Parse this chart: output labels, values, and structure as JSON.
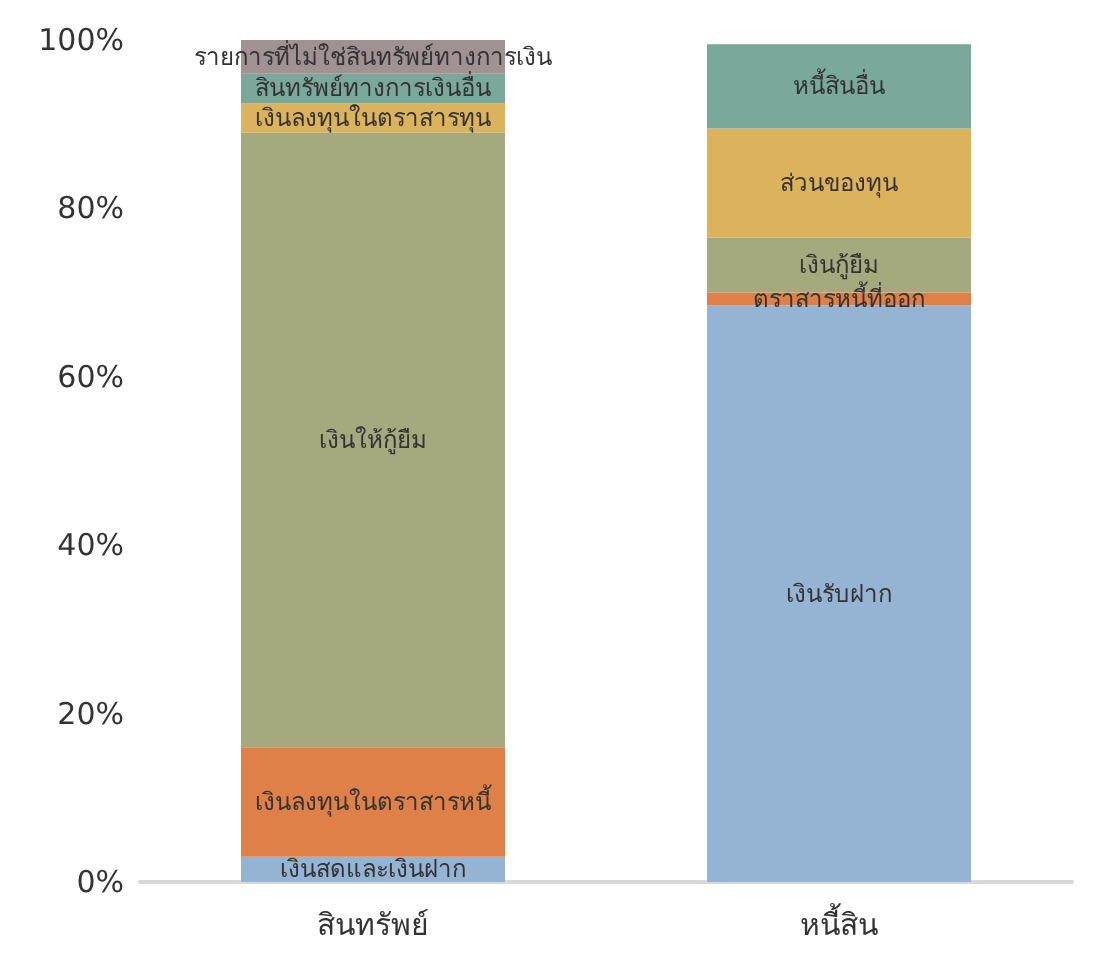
{
  "chart_data": {
    "type": "bar",
    "stacked": true,
    "categories": [
      "สินทรัพย์",
      "หนี้สิน"
    ],
    "ylim": [
      0,
      100
    ],
    "yticks": [
      {
        "value": 0,
        "label": "0%"
      },
      {
        "value": 20,
        "label": "20%"
      },
      {
        "value": 40,
        "label": "40%"
      },
      {
        "value": 60,
        "label": "60%"
      },
      {
        "value": 80,
        "label": "80%"
      },
      {
        "value": 100,
        "label": "100%"
      }
    ],
    "grid": false,
    "legend": false,
    "series": [
      {
        "name": "เงินสดและเงินฝาก",
        "color": "#95b3d3",
        "values": [
          3,
          null
        ]
      },
      {
        "name": "เงินลงทุนในตราสารหนี้",
        "color": "#de8048",
        "values": [
          13,
          null
        ]
      },
      {
        "name": "เงินให้กู้ยืม",
        "color": "#a4aa7e",
        "values": [
          73,
          null
        ]
      },
      {
        "name": "เงินลงทุนในตราสารทุน",
        "color": "#dbb35c",
        "values": [
          3.5,
          null
        ]
      },
      {
        "name": "สินทรัพย์ทางการเงินอื่น",
        "color": "#7aa89a",
        "values": [
          3.5,
          null
        ]
      },
      {
        "name": "รายการที่ไม่ใช่สินทรัพย์ทางการเงิน",
        "color": "#a09292",
        "values": [
          4,
          null
        ]
      },
      {
        "name": "เงินรับฝาก",
        "color": "#95b3d3",
        "values": [
          null,
          68.5
        ]
      },
      {
        "name": "ตราสารหนี้ที่ออก",
        "color": "#de8048",
        "values": [
          null,
          1.5
        ]
      },
      {
        "name": "เงินกู้ยืม",
        "color": "#a4aa7e",
        "values": [
          null,
          6.5
        ]
      },
      {
        "name": "ส่วนของทุน",
        "color": "#dbb35c",
        "values": [
          null,
          13
        ]
      },
      {
        "name": "หนี้สินอื่น",
        "color": "#7aa89a",
        "values": [
          null,
          10
        ]
      }
    ]
  }
}
